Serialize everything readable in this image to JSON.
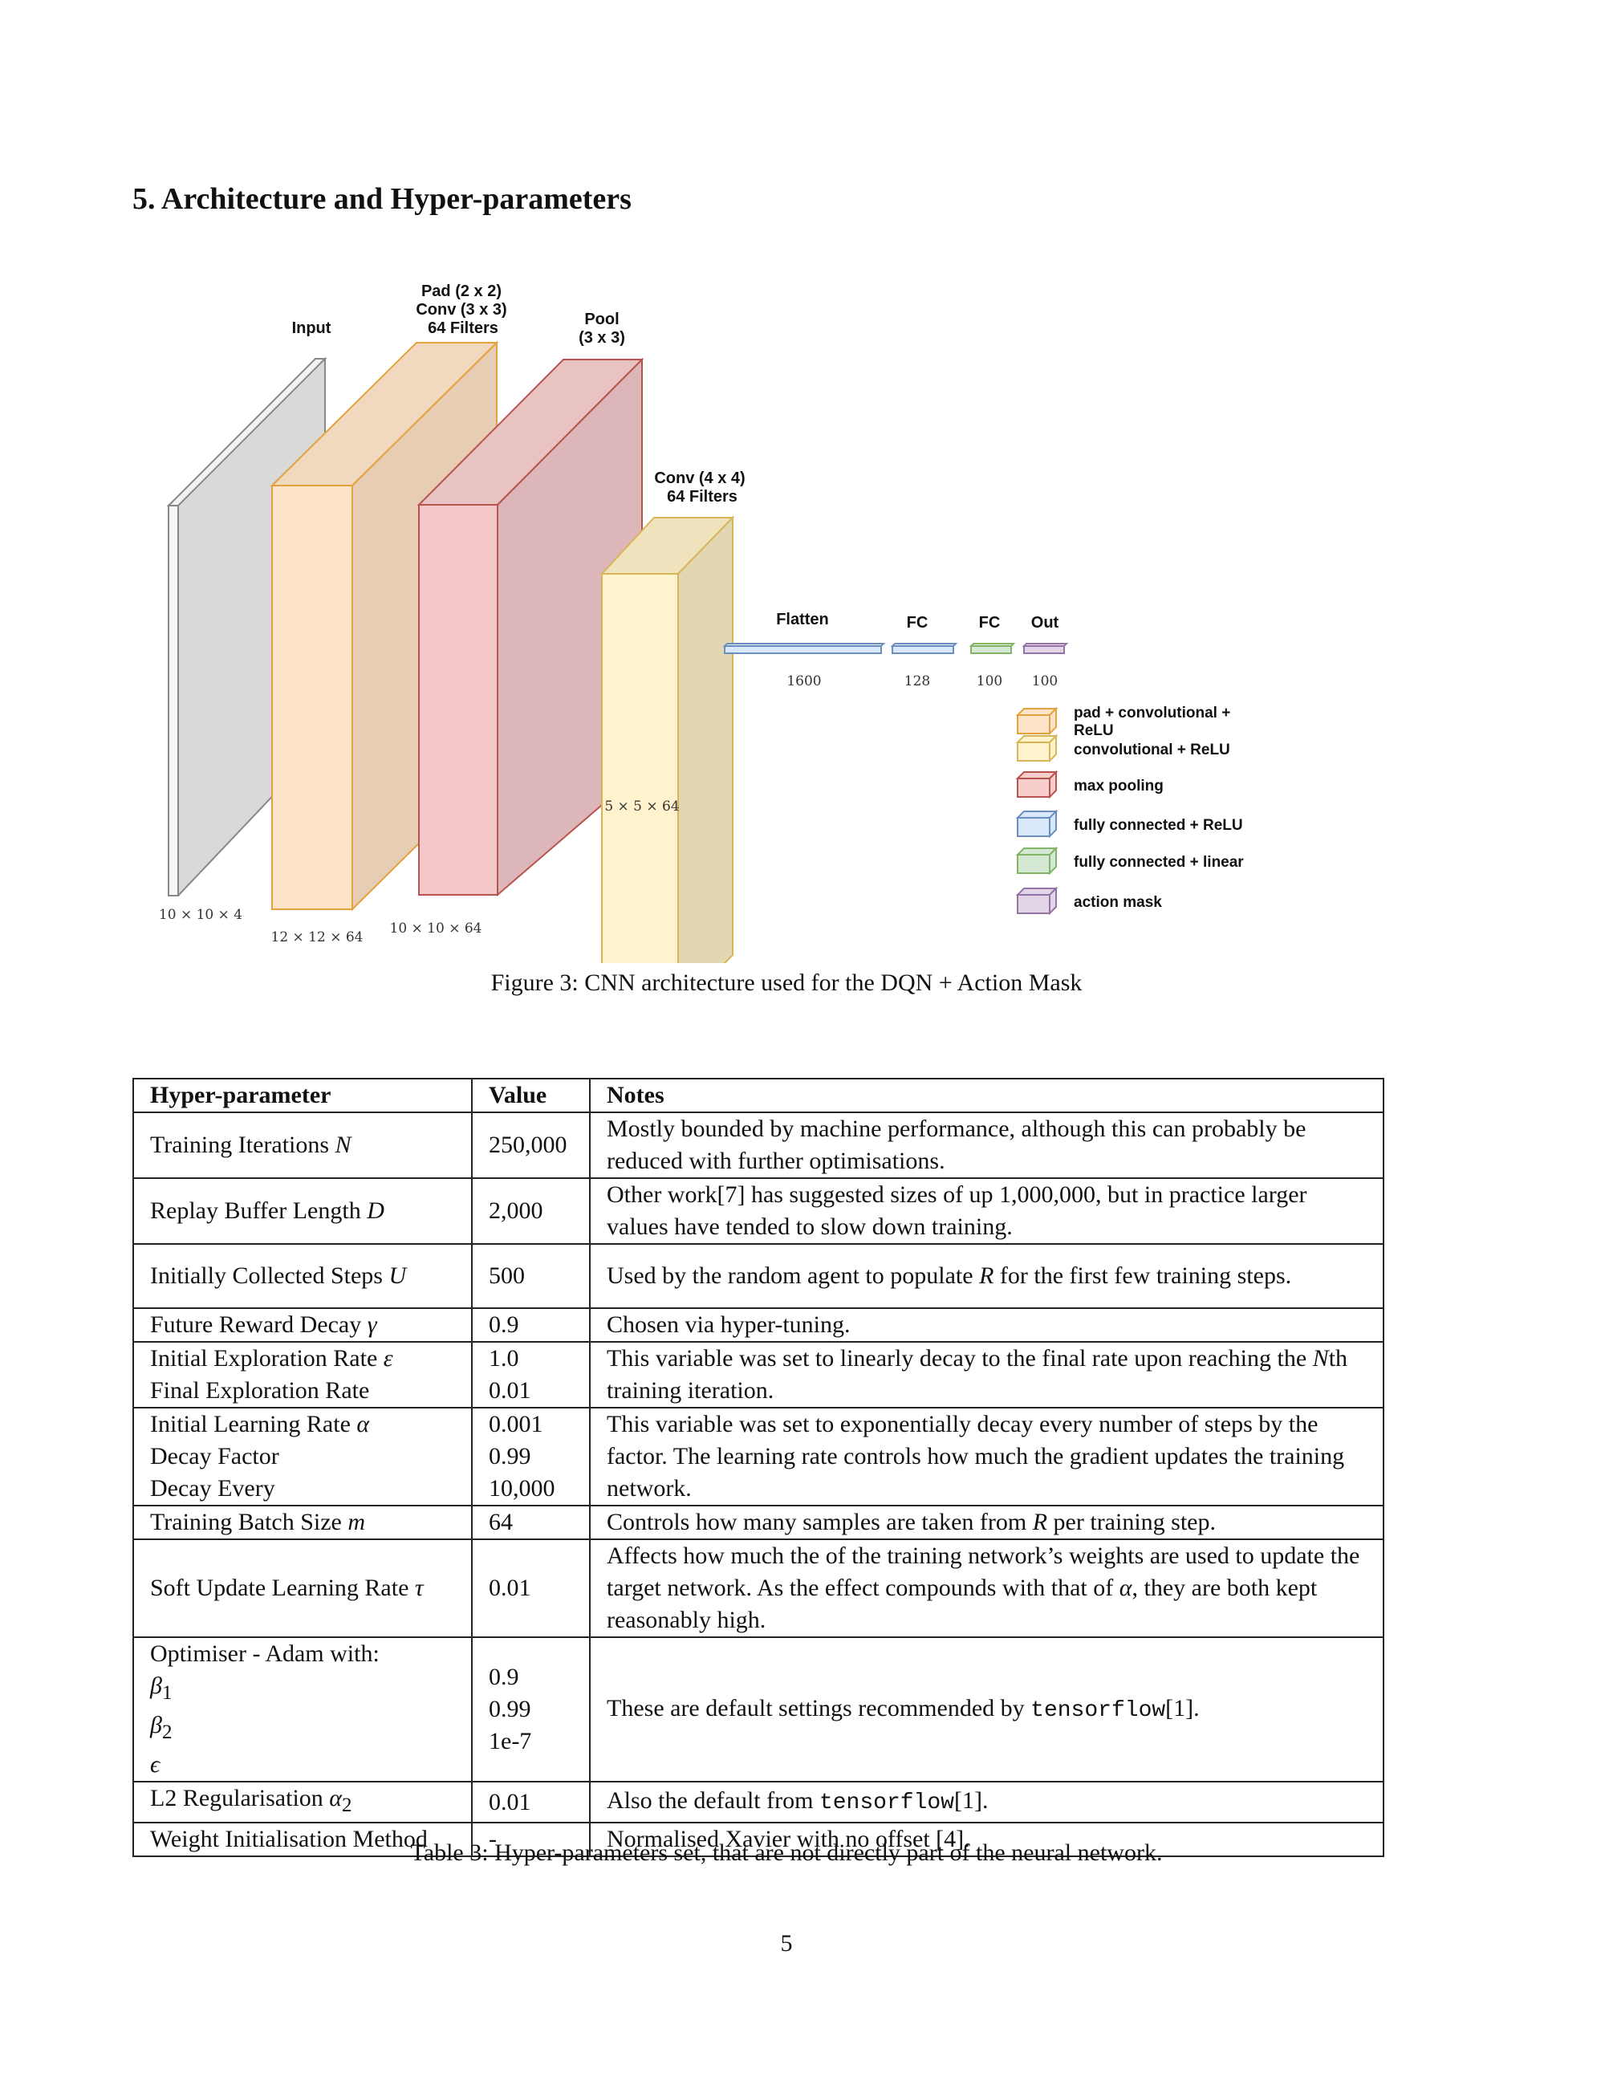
{
  "section_title": "5. Architecture and Hyper-parameters",
  "figure": {
    "labels": {
      "input": "Input",
      "conv1": [
        "Pad (2 x 2)",
        "Conv (3 x 3)",
        "64 Filters"
      ],
      "pool": [
        "Pool",
        "(3 x 3)"
      ],
      "conv2": [
        "Conv (4 x 4)",
        "64 Filters"
      ],
      "flatten": "Flatten",
      "fc1": "FC",
      "fc2": "FC",
      "out": "Out"
    },
    "dims": {
      "input": "10 × 10 × 4",
      "conv1": "12 × 12 × 64",
      "pool": "10 × 10 × 64",
      "conv2": "5 × 5 × 64",
      "flatten": "1600",
      "fc1": "128",
      "fc2": "100",
      "out": "100"
    },
    "legend": [
      {
        "label": [
          "pad + convolutional +",
          "ReLU"
        ],
        "color": "#fde4c9",
        "edge": "#e3a23c"
      },
      {
        "label": [
          "convolutional + ReLU"
        ],
        "color": "#fff2cc",
        "edge": "#d6b656"
      },
      {
        "label": [
          "max pooling"
        ],
        "color": "#f8cecc",
        "edge": "#b85450"
      },
      {
        "label": [
          "fully connected + ReLU"
        ],
        "color": "#dae8fc",
        "edge": "#6c8ebf"
      },
      {
        "label": [
          "fully connected + linear"
        ],
        "color": "#d5e8d4",
        "edge": "#82b366"
      },
      {
        "label": [
          "action mask"
        ],
        "color": "#e1d5e7",
        "edge": "#9673a6"
      }
    ],
    "caption": "Figure 3: CNN architecture used for the DQN + Action Mask"
  },
  "table": {
    "headers": [
      "Hyper-parameter",
      "Value",
      "Notes"
    ],
    "rows": [
      {
        "param": "Training Iterations ",
        "sym": "N",
        "value": "250,000",
        "notes": "Mostly bounded by machine performance, although this can probably be reduced with further optimisations."
      },
      {
        "param": "Replay Buffer Length ",
        "sym": "D",
        "value": "2,000",
        "notes": "Other work[7] has suggested sizes of up 1,000,000, but in practice larger values have tended to slow down training."
      },
      {
        "param": "Initially Collected Steps ",
        "sym": "U",
        "value": "500",
        "notes_pre": "Used by the random agent to populate ",
        "notes_sym": "R",
        "notes_post": " for the first few training steps."
      },
      {
        "param": "Future Reward Decay ",
        "sym": "γ",
        "value": "0.9",
        "notes": "Chosen via hyper-tuning."
      },
      {
        "param_lines": [
          "Initial Exploration Rate ",
          "Final Exploration Rate"
        ],
        "sym": "ε",
        "value_lines": [
          "1.0",
          "0.01"
        ],
        "notes_pre": "This variable was set to linearly decay to the final rate upon reaching the ",
        "notes_sym": "N",
        "notes_post": "th training iteration."
      },
      {
        "param_lines": [
          "Initial Learning Rate ",
          "Decay Factor",
          "Decay Every"
        ],
        "sym": "α",
        "value_lines": [
          "0.001",
          "0.99",
          "10,000"
        ],
        "notes": "This variable was set to exponentially decay every number of steps by the factor. The learning rate controls how much the gradient updates the training network."
      },
      {
        "param": "Training Batch Size ",
        "sym": "m",
        "value": "64",
        "notes_pre": "Controls how many samples are taken from ",
        "notes_sym": "R",
        "notes_post": " per training step."
      },
      {
        "param": "Soft Update Learning Rate ",
        "sym": "τ",
        "value": "0.01",
        "notes_pre": "Affects how much the of the training network’s weights are used to update the target network. As the effect compounds with that of ",
        "notes_sym": "α",
        "notes_post": ", they are both kept reasonably high."
      },
      {
        "param_lines": [
          "Optimiser - Adam with:",
          "β",
          "β",
          "ϵ"
        ],
        "subs": [
          "",
          "1",
          "2",
          ""
        ],
        "value_lines": [
          "0.9",
          "0.99",
          "1e-7"
        ],
        "notes_pre": "These are default settings recommended by ",
        "notes_mono": "tensorflow",
        "notes_post": "[1]."
      },
      {
        "param": "L2 Regularisation ",
        "sym": "α",
        "sub": "2",
        "value": "0.01",
        "notes_pre": "Also the default from ",
        "notes_mono": "tensorflow",
        "notes_post": "[1]."
      },
      {
        "param": "Weight Initialisation Method",
        "value": "-",
        "notes": "Normalised Xavier with no offset [4]."
      }
    ],
    "caption": "Table 3: Hyper-parameters set, that are not directly part of the neural network."
  },
  "page_number": "5"
}
